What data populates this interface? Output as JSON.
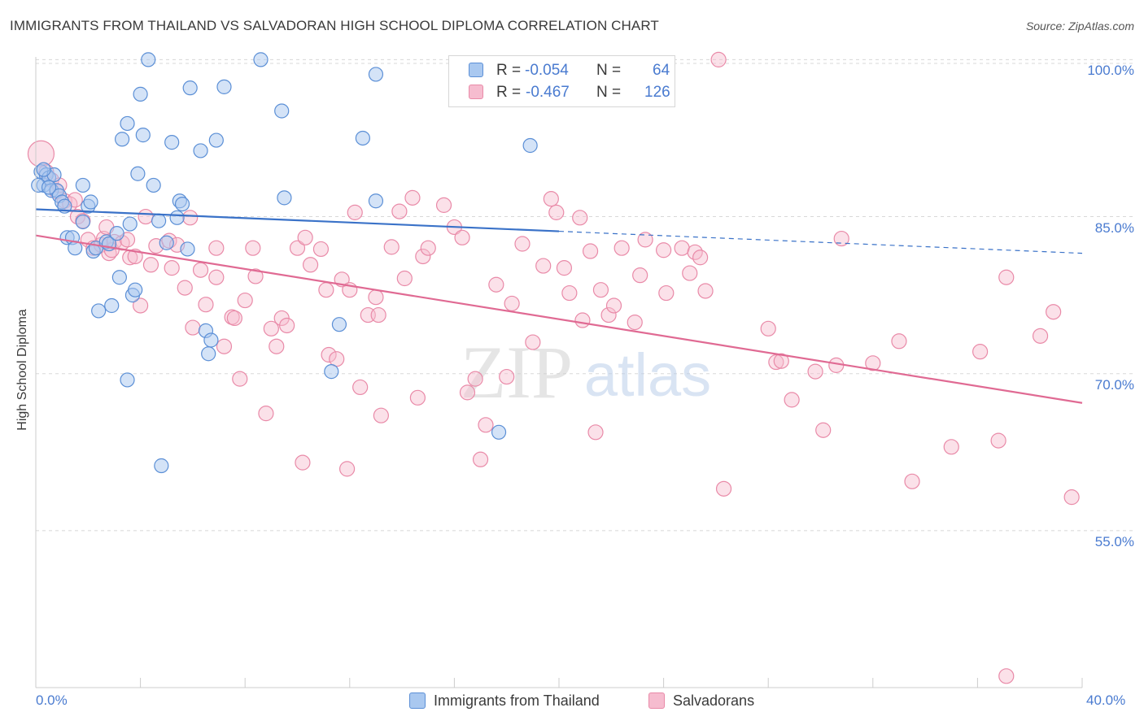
{
  "title": "IMMIGRANTS FROM THAILAND VS SALVADORAN HIGH SCHOOL DIPLOMA CORRELATION CHART",
  "source": "Source: ZipAtlas.com",
  "watermark": {
    "zip": "ZIP",
    "atlas": "atlas"
  },
  "legend_top": {
    "rows": [
      {
        "r_label": "R =",
        "r_value": "-0.054",
        "n_label": "N =",
        "n_value": "64"
      },
      {
        "r_label": "R =",
        "r_value": "-0.467",
        "n_label": "N =",
        "n_value": "126"
      }
    ]
  },
  "legend_bottom": {
    "series1": "Immigrants from Thailand",
    "series2": "Salvadorans"
  },
  "colors": {
    "series1_fill": "#a9c8f0",
    "series1_stroke": "#5b8fd6",
    "series1_line": "#3a72c8",
    "series2_fill": "#f6bccf",
    "series2_stroke": "#e98aa8",
    "series2_line": "#e06a93",
    "tick_text": "#4a7bd0",
    "grid": "#d8d8d8"
  },
  "chart_data": {
    "type": "scatter",
    "title": "IMMIGRANTS FROM THAILAND VS SALVADORAN HIGH SCHOOL DIPLOMA CORRELATION CHART",
    "xlabel": "",
    "ylabel": "High School Diploma",
    "xlim": [
      0,
      40
    ],
    "ylim": [
      40,
      102.5
    ],
    "x_tick_labels": [
      "0.0%",
      "40.0%"
    ],
    "y_ticks": [
      {
        "value": 100,
        "label": "100.0%"
      },
      {
        "value": 85,
        "label": "85.0%"
      },
      {
        "value": 70,
        "label": "70.0%"
      },
      {
        "value": 55,
        "label": "55.0%"
      }
    ],
    "series": [
      {
        "name": "Immigrants from Thailand",
        "r": -0.054,
        "n": 64,
        "trend": {
          "x1": 0,
          "y1": 85.7,
          "x2": 20,
          "y2": 83.6,
          "dash_to_x": 40,
          "dash_to_y": 81.5
        },
        "points": [
          [
            0.2,
            89.3
          ],
          [
            0.3,
            88.0
          ],
          [
            0.4,
            89.0
          ],
          [
            0.5,
            88.7
          ],
          [
            0.6,
            87.5
          ],
          [
            0.7,
            89.0
          ],
          [
            0.8,
            87.5
          ],
          [
            0.9,
            87.0
          ],
          [
            1.0,
            86.4
          ],
          [
            1.1,
            86.0
          ],
          [
            1.2,
            83.0
          ],
          [
            1.4,
            83.0
          ],
          [
            1.5,
            82.0
          ],
          [
            1.8,
            84.5
          ],
          [
            1.8,
            88.0
          ],
          [
            2.0,
            86.0
          ],
          [
            2.1,
            86.4
          ],
          [
            2.2,
            81.7
          ],
          [
            2.3,
            82.0
          ],
          [
            2.4,
            76.0
          ],
          [
            2.7,
            82.6
          ],
          [
            2.8,
            82.4
          ],
          [
            2.9,
            76.5
          ],
          [
            3.1,
            83.4
          ],
          [
            3.2,
            79.2
          ],
          [
            3.3,
            92.4
          ],
          [
            3.5,
            69.4
          ],
          [
            3.5,
            93.9
          ],
          [
            3.6,
            84.3
          ],
          [
            3.7,
            77.5
          ],
          [
            3.8,
            78.0
          ],
          [
            3.9,
            89.1
          ],
          [
            4.0,
            96.7
          ],
          [
            4.1,
            92.8
          ],
          [
            4.3,
            100.0
          ],
          [
            4.5,
            88.0
          ],
          [
            4.7,
            84.6
          ],
          [
            4.8,
            61.2
          ],
          [
            5.0,
            82.5
          ],
          [
            5.2,
            92.1
          ],
          [
            5.4,
            84.9
          ],
          [
            5.5,
            86.5
          ],
          [
            5.6,
            86.2
          ],
          [
            5.8,
            81.9
          ],
          [
            5.9,
            97.3
          ],
          [
            6.3,
            91.3
          ],
          [
            6.5,
            74.1
          ],
          [
            6.6,
            71.9
          ],
          [
            6.7,
            73.2
          ],
          [
            6.9,
            92.3
          ],
          [
            7.2,
            97.4
          ],
          [
            8.6,
            100.0
          ],
          [
            9.4,
            95.1
          ],
          [
            9.5,
            86.8
          ],
          [
            11.3,
            70.2
          ],
          [
            11.6,
            74.7
          ],
          [
            12.5,
            92.5
          ],
          [
            13.0,
            86.5
          ],
          [
            13.0,
            98.6
          ],
          [
            17.7,
            64.4
          ],
          [
            18.9,
            91.8
          ],
          [
            0.1,
            88.0
          ],
          [
            0.5,
            87.8
          ],
          [
            0.3,
            89.5
          ]
        ]
      },
      {
        "name": "Salvadorans",
        "r": -0.467,
        "n": 126,
        "trend": {
          "x1": 0,
          "y1": 83.2,
          "x2": 40,
          "y2": 67.2
        },
        "points": [
          [
            0.2,
            91.0
          ],
          [
            0.4,
            89.3
          ],
          [
            0.6,
            88.5
          ],
          [
            0.8,
            87.4
          ],
          [
            0.9,
            88.0
          ],
          [
            1.1,
            86.5
          ],
          [
            1.3,
            86.2
          ],
          [
            1.5,
            86.6
          ],
          [
            1.6,
            85.0
          ],
          [
            1.8,
            84.6
          ],
          [
            2.0,
            82.8
          ],
          [
            2.2,
            82.0
          ],
          [
            2.5,
            82.3
          ],
          [
            2.6,
            82.9
          ],
          [
            2.7,
            84.0
          ],
          [
            2.8,
            81.5
          ],
          [
            2.9,
            81.8
          ],
          [
            3.0,
            82.6
          ],
          [
            3.3,
            82.5
          ],
          [
            3.5,
            82.8
          ],
          [
            3.6,
            81.1
          ],
          [
            3.8,
            81.2
          ],
          [
            4.0,
            76.5
          ],
          [
            4.2,
            85.0
          ],
          [
            4.4,
            80.4
          ],
          [
            4.6,
            82.2
          ],
          [
            5.1,
            82.7
          ],
          [
            5.2,
            80.1
          ],
          [
            5.4,
            82.3
          ],
          [
            5.7,
            78.2
          ],
          [
            5.9,
            84.9
          ],
          [
            6.0,
            74.4
          ],
          [
            6.3,
            79.9
          ],
          [
            6.5,
            76.6
          ],
          [
            6.9,
            82.0
          ],
          [
            6.9,
            79.2
          ],
          [
            7.2,
            72.6
          ],
          [
            7.5,
            75.4
          ],
          [
            7.6,
            75.3
          ],
          [
            7.8,
            69.5
          ],
          [
            8.0,
            77.0
          ],
          [
            8.3,
            82.0
          ],
          [
            8.4,
            79.3
          ],
          [
            8.8,
            66.2
          ],
          [
            9.0,
            74.3
          ],
          [
            9.2,
            72.6
          ],
          [
            9.4,
            75.3
          ],
          [
            9.6,
            74.6
          ],
          [
            10.0,
            82.0
          ],
          [
            10.2,
            61.5
          ],
          [
            10.3,
            83.0
          ],
          [
            10.5,
            80.4
          ],
          [
            10.9,
            81.9
          ],
          [
            11.1,
            78.0
          ],
          [
            11.2,
            71.8
          ],
          [
            11.5,
            71.4
          ],
          [
            11.7,
            79.0
          ],
          [
            11.9,
            60.9
          ],
          [
            12.0,
            78.0
          ],
          [
            12.2,
            85.4
          ],
          [
            12.4,
            68.7
          ],
          [
            12.7,
            75.6
          ],
          [
            13.0,
            77.3
          ],
          [
            13.1,
            75.6
          ],
          [
            13.2,
            66.0
          ],
          [
            13.6,
            82.1
          ],
          [
            13.9,
            85.5
          ],
          [
            14.1,
            79.1
          ],
          [
            14.4,
            86.8
          ],
          [
            14.6,
            67.7
          ],
          [
            14.8,
            81.2
          ],
          [
            15.0,
            82.0
          ],
          [
            15.6,
            86.1
          ],
          [
            16.0,
            84.0
          ],
          [
            16.3,
            83.0
          ],
          [
            16.5,
            68.2
          ],
          [
            16.8,
            69.5
          ],
          [
            17.0,
            61.8
          ],
          [
            17.2,
            65.1
          ],
          [
            17.6,
            78.5
          ],
          [
            18.0,
            69.7
          ],
          [
            18.2,
            76.7
          ],
          [
            18.6,
            82.4
          ],
          [
            19.0,
            73.0
          ],
          [
            19.4,
            80.3
          ],
          [
            19.7,
            86.7
          ],
          [
            19.9,
            85.4
          ],
          [
            20.2,
            80.1
          ],
          [
            20.4,
            77.7
          ],
          [
            20.8,
            84.9
          ],
          [
            20.9,
            75.1
          ],
          [
            21.2,
            81.7
          ],
          [
            21.4,
            64.4
          ],
          [
            21.6,
            78.0
          ],
          [
            21.9,
            75.6
          ],
          [
            22.1,
            76.5
          ],
          [
            22.4,
            82.0
          ],
          [
            22.9,
            74.9
          ],
          [
            23.1,
            79.4
          ],
          [
            23.3,
            82.8
          ],
          [
            24.0,
            81.8
          ],
          [
            24.1,
            77.7
          ],
          [
            24.7,
            82.0
          ],
          [
            25.0,
            79.6
          ],
          [
            25.2,
            81.6
          ],
          [
            25.4,
            81.1
          ],
          [
            25.6,
            77.9
          ],
          [
            26.1,
            100.0
          ],
          [
            26.3,
            59.0
          ],
          [
            28.0,
            74.3
          ],
          [
            28.3,
            71.1
          ],
          [
            28.5,
            71.2
          ],
          [
            28.9,
            67.5
          ],
          [
            29.8,
            70.2
          ],
          [
            30.1,
            64.6
          ],
          [
            30.6,
            70.8
          ],
          [
            30.8,
            82.9
          ],
          [
            32.0,
            71.0
          ],
          [
            33.0,
            73.1
          ],
          [
            33.5,
            59.7
          ],
          [
            35.0,
            63.0
          ],
          [
            36.1,
            72.1
          ],
          [
            37.1,
            79.2
          ],
          [
            37.1,
            41.1
          ],
          [
            39.6,
            58.2
          ],
          [
            38.4,
            73.6
          ],
          [
            38.9,
            75.9
          ],
          [
            36.8,
            63.6
          ]
        ]
      }
    ]
  }
}
